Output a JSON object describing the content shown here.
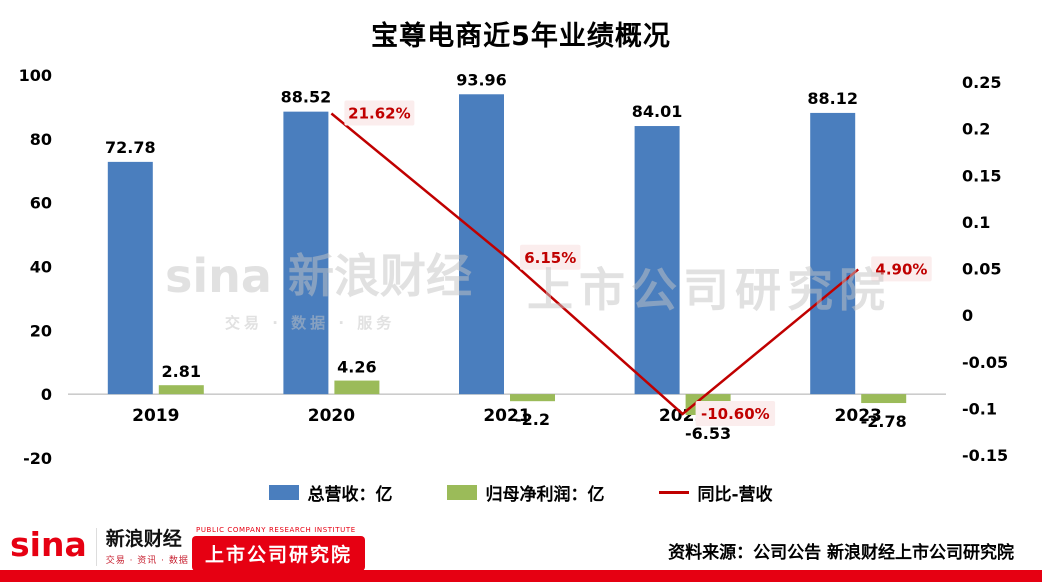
{
  "title": "宝尊电商近5年业绩概况",
  "colors": {
    "revenue_bar": "#4A7EBE",
    "profit_bar": "#9BBB59",
    "yoy_line": "#C00000",
    "yoy_label_bg": "#FBEDED",
    "footer_red": "#E60012",
    "zero_line": "#adadad"
  },
  "chart_data": {
    "type": "combo-bar-line",
    "categories": [
      "2019",
      "2020",
      "2021",
      "2022",
      "2023"
    ],
    "series": [
      {
        "name": "总营收：亿",
        "type": "bar",
        "axis": "left",
        "color": "#4A7EBE",
        "values": [
          72.78,
          88.52,
          93.96,
          84.01,
          88.12
        ],
        "labels": [
          "72.78",
          "88.52",
          "93.96",
          "84.01",
          "88.12"
        ]
      },
      {
        "name": "归母净利润：亿",
        "type": "bar",
        "axis": "left",
        "color": "#9BBB59",
        "values": [
          2.81,
          4.26,
          -2.2,
          -6.53,
          -2.78
        ],
        "labels": [
          "2.81",
          "4.26",
          "-2.2",
          "-6.53",
          "-2.78"
        ]
      },
      {
        "name": "同比-营收",
        "type": "line",
        "axis": "right",
        "color": "#C00000",
        "values": [
          null,
          0.2162,
          0.0615,
          -0.106,
          0.049
        ],
        "labels": [
          null,
          "21.62%",
          "6.15%",
          "-10.60%",
          "4.90%"
        ]
      }
    ],
    "left_axis": {
      "min": -20,
      "max": 100,
      "ticks": [
        100,
        80,
        60,
        40,
        20,
        0,
        -20
      ]
    },
    "right_axis": {
      "min": -0.15,
      "max": 0.25,
      "ticks": [
        "0.25",
        "0.2",
        "0.15",
        "0.1",
        "0.05",
        "0",
        "-0.05",
        "-0.1",
        "-0.15"
      ]
    },
    "grid": false,
    "legend_position": "bottom"
  },
  "legend": [
    {
      "label": "总营收：亿",
      "color": "#4A7EBE",
      "swatch": "bar"
    },
    {
      "label": "归母净利润：亿",
      "color": "#9BBB59",
      "swatch": "bar"
    },
    {
      "label": "同比-营收",
      "color": "#C00000",
      "swatch": "line"
    }
  ],
  "watermark": {
    "left": "sina 新浪财经",
    "left_sub": "交易 · 数据 · 服务",
    "right": "上市公司研究院"
  },
  "footer": {
    "sina_logo": "sina",
    "brand": "新浪财经",
    "brand_sub": "交易 · 资讯 · 数据 · 服务",
    "institute_en": "PUBLIC COMPANY RESEARCH INSTITUTE",
    "institute": "上市公司研究院",
    "source": "资料来源：公司公告 新浪财经上市公司研究院"
  }
}
